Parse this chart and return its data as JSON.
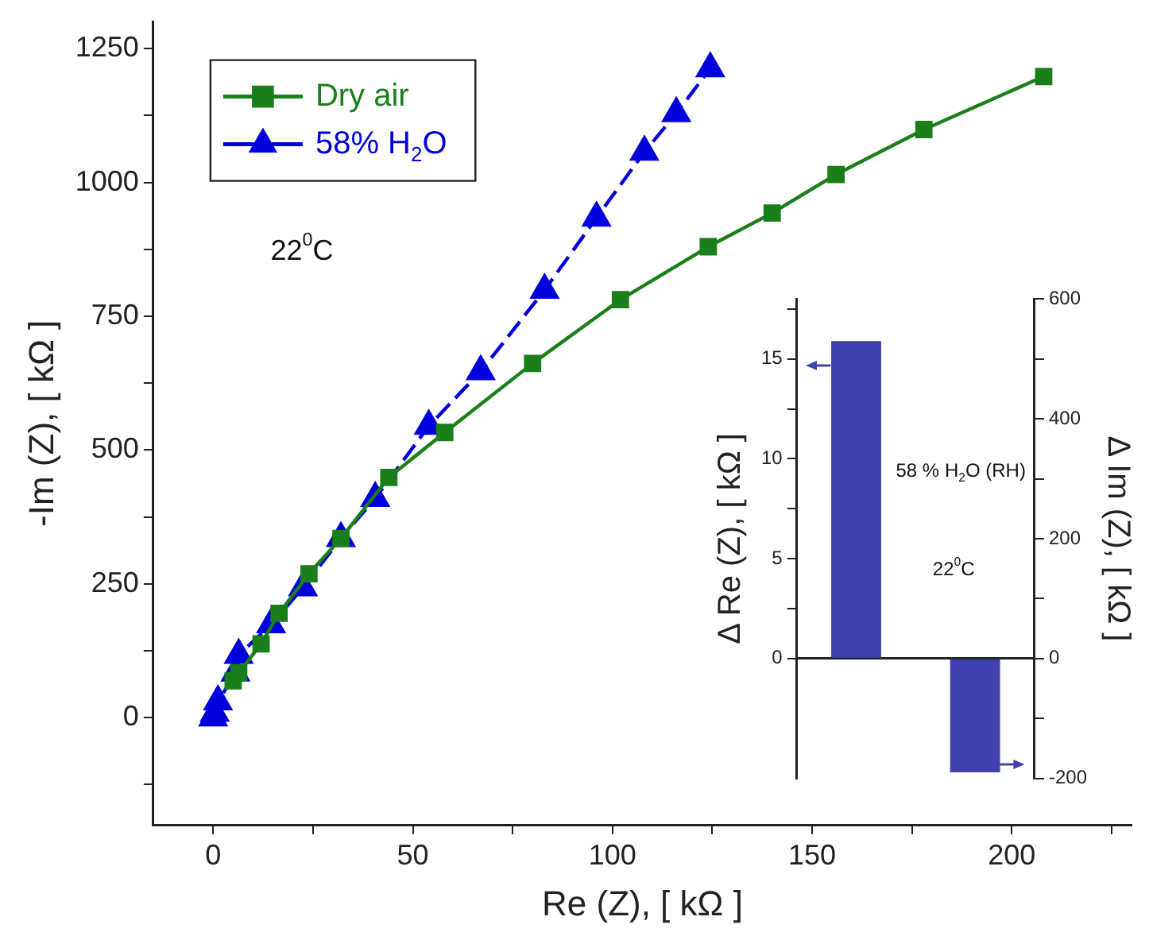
{
  "chart_data": [
    {
      "type": "line",
      "xlabel": "Re (Z), [ kΩ ]",
      "ylabel": "-Im (Z), [ kΩ ]",
      "xlim": [
        -15,
        230
      ],
      "xticks": [
        0,
        {
          "value": 25,
          "label": null
        },
        50,
        {
          "value": 75,
          "label": null
        },
        100,
        {
          "value": 125,
          "label": null
        },
        150,
        {
          "value": 175,
          "label": null
        },
        200,
        {
          "value": 225,
          "label": null
        }
      ],
      "ylim": [
        -200,
        1300
      ],
      "yticks": [
        {
          "value": -125,
          "label": null
        },
        0,
        {
          "value": 125,
          "label": null
        },
        250,
        {
          "value": 375,
          "label": null
        },
        500,
        {
          "value": 625,
          "label": null
        },
        750,
        {
          "value": 875,
          "label": null
        },
        1000,
        {
          "value": 1125,
          "label": null
        },
        1250
      ],
      "legend": "top left",
      "annotations": [
        "22$^{0}$C"
      ],
      "series": [
        {
          "name": "Dry air",
          "color": "#1a7f1a",
          "marker": "square",
          "line_style": "solid",
          "x": [
            5,
            6.4,
            12,
            16.5,
            24,
            32,
            44,
            58,
            80,
            102,
            124,
            140,
            156,
            178,
            208
          ],
          "values": [
            69,
            84,
            138,
            195,
            269,
            335,
            449,
            533,
            662,
            781,
            880,
            943,
            1015,
            1099,
            1198
          ]
        },
        {
          "name": "58% H$_{2}$O",
          "color": "#0000dd",
          "marker": "triangle",
          "line_style": "dashed",
          "x": [
            0,
            0.4,
            1.2,
            5.6,
            6.4,
            14.5,
            22.5,
            32,
            40.6,
            54,
            67,
            83,
            96,
            108,
            116,
            124.5
          ],
          "values": [
            0,
            9,
            30,
            84,
            117,
            174,
            243,
            335,
            410,
            545,
            647,
            799,
            934,
            1057,
            1129,
            1213
          ]
        }
      ]
    },
    {
      "type": "bar",
      "categories": [
        null,
        null
      ],
      "ylabel": "Δ Re (Z), [ kΩ ]",
      "y2label": "Δ Im (Z), [ kΩ ]",
      "ylim": [
        -6,
        18
      ],
      "yticks": [
        0,
        {
          "value": 2.5,
          "label": null
        },
        5,
        {
          "value": 7.5,
          "label": null
        },
        10,
        {
          "value": 12.5,
          "label": null
        },
        15,
        {
          "value": 17.5,
          "label": null
        }
      ],
      "y2lim": [
        -200,
        600
      ],
      "y2ticks": [
        -200,
        {
          "value": -100,
          "label": null
        },
        0,
        {
          "value": 100,
          "label": null
        },
        200,
        {
          "value": 300,
          "label": null
        },
        400,
        {
          "value": 500,
          "label": null
        },
        600
      ],
      "legend": false,
      "annotations": [
        "58 % H$_{2}$O (RH)",
        "22$^{0}$C"
      ],
      "series": [
        {
          "color": "#4040b0",
          "values": [
            15.9,
            null
          ]
        },
        {
          "color": "#4040b0",
          "axis": "y2",
          "values": [
            null,
            -190
          ]
        }
      ]
    }
  ]
}
